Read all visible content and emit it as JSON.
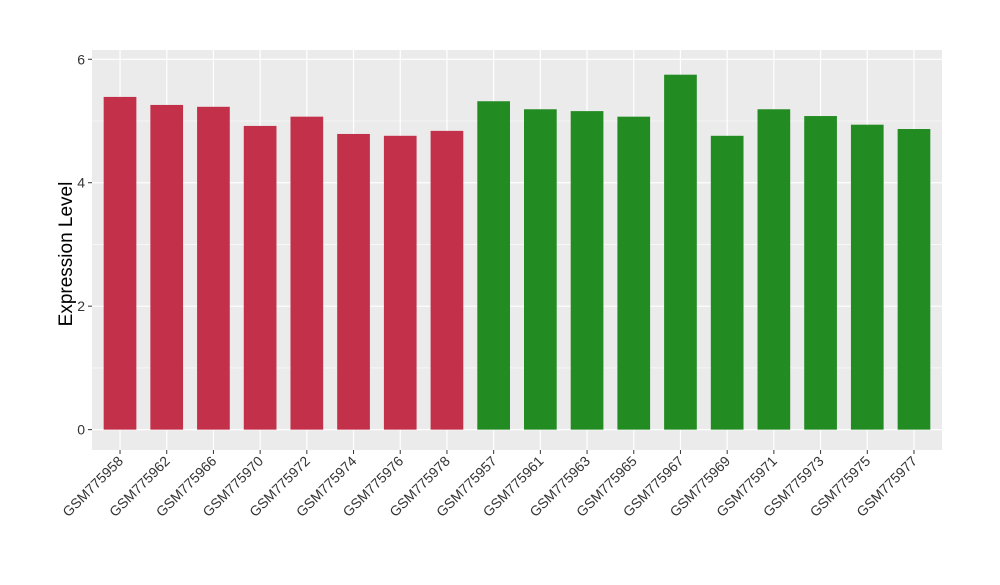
{
  "chart_data": {
    "type": "bar",
    "title": "",
    "xlabel": "",
    "ylabel": "Expression Level",
    "ylim": [
      -0.33,
      6.15
    ],
    "yticks": [
      0,
      2,
      4,
      6
    ],
    "grid": true,
    "categories": [
      "GSM775958",
      "GSM775962",
      "GSM775966",
      "GSM775970",
      "GSM775972",
      "GSM775974",
      "GSM775976",
      "GSM775978",
      "GSM775957",
      "GSM775961",
      "GSM775963",
      "GSM775965",
      "GSM775967",
      "GSM775969",
      "GSM775971",
      "GSM775973",
      "GSM775975",
      "GSM775977"
    ],
    "values": [
      5.39,
      5.26,
      5.23,
      4.92,
      5.07,
      4.79,
      4.76,
      4.84,
      5.32,
      5.19,
      5.16,
      5.07,
      5.75,
      4.76,
      5.19,
      5.08,
      4.94,
      4.87
    ],
    "bar_colors": [
      "#c3304a",
      "#c3304a",
      "#c3304a",
      "#c3304a",
      "#c3304a",
      "#c3304a",
      "#c3304a",
      "#c3304a",
      "#228b22",
      "#228b22",
      "#228b22",
      "#228b22",
      "#228b22",
      "#228b22",
      "#228b22",
      "#228b22",
      "#228b22",
      "#228b22"
    ],
    "panel_background": "#ebebeb"
  }
}
